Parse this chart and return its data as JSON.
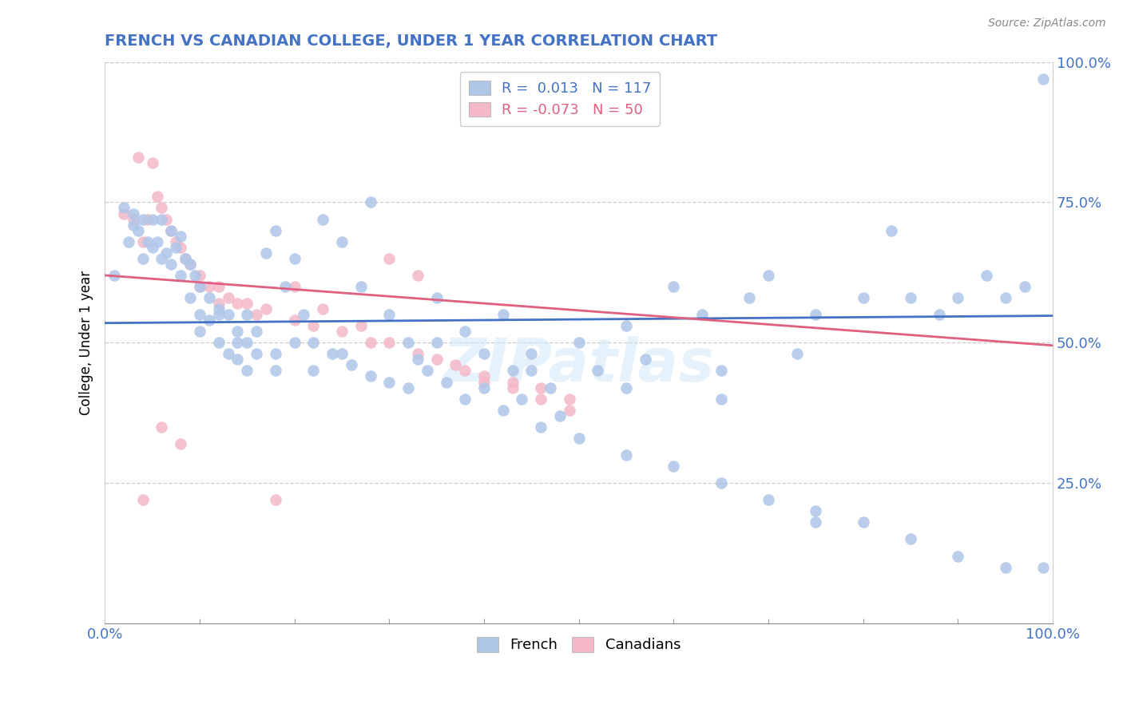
{
  "title": "FRENCH VS CANADIAN COLLEGE, UNDER 1 YEAR CORRELATION CHART",
  "title_color": "#4472c4",
  "source_text": "Source: ZipAtlas.com",
  "ylabel": "College, Under 1 year",
  "xlim": [
    0.0,
    1.0
  ],
  "ylim": [
    0.0,
    1.0
  ],
  "french_color": "#aec6e8",
  "canadians_color": "#f4b8c8",
  "french_line_color": "#4472c4",
  "canadians_line_color": "#e06080",
  "legend_R_french": "0.013",
  "legend_N_french": "117",
  "legend_R_canadians": "-0.073",
  "legend_N_canadians": "50",
  "watermark": "ZIPatlas",
  "french_scatter_x": [
    0.01,
    0.02,
    0.025,
    0.03,
    0.03,
    0.035,
    0.04,
    0.04,
    0.045,
    0.05,
    0.05,
    0.055,
    0.06,
    0.06,
    0.065,
    0.07,
    0.07,
    0.075,
    0.08,
    0.08,
    0.085,
    0.09,
    0.09,
    0.095,
    0.1,
    0.1,
    0.11,
    0.11,
    0.12,
    0.12,
    0.13,
    0.13,
    0.14,
    0.14,
    0.15,
    0.15,
    0.16,
    0.17,
    0.18,
    0.18,
    0.19,
    0.2,
    0.21,
    0.22,
    0.23,
    0.25,
    0.27,
    0.28,
    0.3,
    0.32,
    0.33,
    0.35,
    0.38,
    0.4,
    0.42,
    0.43,
    0.45,
    0.47,
    0.5,
    0.52,
    0.55,
    0.57,
    0.6,
    0.63,
    0.65,
    0.68,
    0.7,
    0.73,
    0.75,
    0.8,
    0.83,
    0.85,
    0.88,
    0.9,
    0.93,
    0.95,
    0.97,
    0.99,
    0.1,
    0.12,
    0.14,
    0.16,
    0.18,
    0.2,
    0.22,
    0.24,
    0.26,
    0.28,
    0.3,
    0.32,
    0.34,
    0.36,
    0.38,
    0.4,
    0.42,
    0.44,
    0.46,
    0.48,
    0.5,
    0.55,
    0.6,
    0.65,
    0.7,
    0.75,
    0.8,
    0.85,
    0.9,
    0.95,
    0.99,
    0.15,
    0.25,
    0.35,
    0.45,
    0.55,
    0.65,
    0.75
  ],
  "french_scatter_y": [
    0.62,
    0.74,
    0.68,
    0.73,
    0.71,
    0.7,
    0.72,
    0.65,
    0.68,
    0.72,
    0.67,
    0.68,
    0.72,
    0.65,
    0.66,
    0.7,
    0.64,
    0.67,
    0.69,
    0.62,
    0.65,
    0.64,
    0.58,
    0.62,
    0.6,
    0.55,
    0.58,
    0.54,
    0.56,
    0.5,
    0.55,
    0.48,
    0.52,
    0.47,
    0.5,
    0.45,
    0.48,
    0.66,
    0.7,
    0.45,
    0.6,
    0.65,
    0.55,
    0.5,
    0.72,
    0.68,
    0.6,
    0.75,
    0.55,
    0.5,
    0.47,
    0.58,
    0.52,
    0.48,
    0.55,
    0.45,
    0.48,
    0.42,
    0.5,
    0.45,
    0.53,
    0.47,
    0.6,
    0.55,
    0.45,
    0.58,
    0.62,
    0.48,
    0.55,
    0.58,
    0.7,
    0.58,
    0.55,
    0.58,
    0.62,
    0.58,
    0.6,
    0.97,
    0.52,
    0.55,
    0.5,
    0.52,
    0.48,
    0.5,
    0.45,
    0.48,
    0.46,
    0.44,
    0.43,
    0.42,
    0.45,
    0.43,
    0.4,
    0.42,
    0.38,
    0.4,
    0.35,
    0.37,
    0.33,
    0.3,
    0.28,
    0.25,
    0.22,
    0.2,
    0.18,
    0.15,
    0.12,
    0.1,
    0.1,
    0.55,
    0.48,
    0.5,
    0.45,
    0.42,
    0.4,
    0.18
  ],
  "canadians_scatter_x": [
    0.02,
    0.03,
    0.035,
    0.04,
    0.045,
    0.05,
    0.055,
    0.06,
    0.065,
    0.07,
    0.075,
    0.08,
    0.085,
    0.09,
    0.1,
    0.11,
    0.12,
    0.13,
    0.15,
    0.17,
    0.2,
    0.22,
    0.25,
    0.28,
    0.3,
    0.33,
    0.35,
    0.38,
    0.4,
    0.43,
    0.46,
    0.49,
    0.04,
    0.06,
    0.08,
    0.1,
    0.12,
    0.14,
    0.16,
    0.18,
    0.2,
    0.23,
    0.27,
    0.3,
    0.33,
    0.37,
    0.4,
    0.43,
    0.46,
    0.49
  ],
  "canadians_scatter_y": [
    0.73,
    0.72,
    0.83,
    0.68,
    0.72,
    0.82,
    0.76,
    0.74,
    0.72,
    0.7,
    0.68,
    0.67,
    0.65,
    0.64,
    0.62,
    0.6,
    0.6,
    0.58,
    0.57,
    0.56,
    0.54,
    0.53,
    0.52,
    0.5,
    0.65,
    0.62,
    0.47,
    0.45,
    0.44,
    0.43,
    0.42,
    0.4,
    0.22,
    0.35,
    0.32,
    0.6,
    0.57,
    0.57,
    0.55,
    0.22,
    0.6,
    0.56,
    0.53,
    0.5,
    0.48,
    0.46,
    0.43,
    0.42,
    0.4,
    0.38
  ],
  "french_trend_x0": 0.0,
  "french_trend_x1": 1.0,
  "french_trend_y0": 0.535,
  "french_trend_y1": 0.548,
  "canadians_trend_x0": 0.0,
  "canadians_trend_x1": 1.0,
  "canadians_trend_y0": 0.62,
  "canadians_trend_y1": 0.495
}
